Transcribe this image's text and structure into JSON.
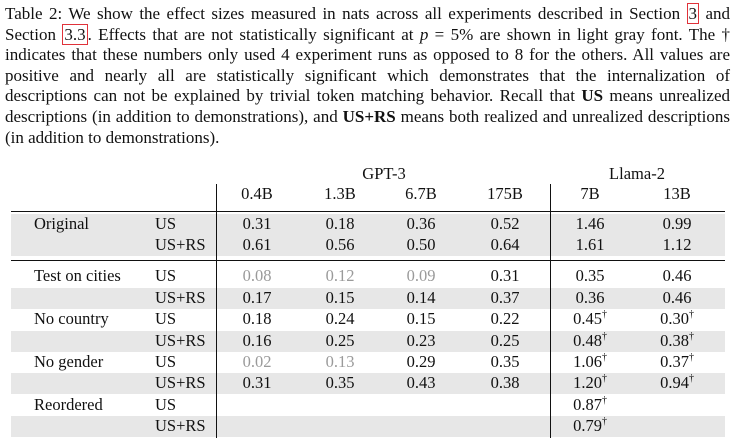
{
  "caption": {
    "label": "Table 2:",
    "text_1": " We show the effect sizes measured in nats across all experiments described in Section ",
    "ref_1": "3",
    "text_2": " and Section ",
    "ref_2": "3.3",
    "text_3": ". Effects that are not statistically significant at ",
    "math_p": "p",
    "math_eq": " = 5%",
    "text_4": " are shown in light gray font. The † indicates that these numbers only used 4 experiment runs as opposed to 8 for the others. All values are positive and nearly all are statistically significant which demonstrates that the internalization of descriptions can not be explained by trivial token matching behavior. Recall that ",
    "bold_us": "US",
    "text_5": " means unrealized descriptions (in addition to demonstrations), and ",
    "bold_usrs": "US+RS",
    "text_6": " means both realized and unrealized descriptions (in addition to demonstrations)."
  },
  "table": {
    "groups": [
      "GPT-3",
      "Llama-2"
    ],
    "columns": [
      "0.4B",
      "1.3B",
      "6.7B",
      "175B",
      "7B",
      "13B"
    ],
    "rows": [
      {
        "exp": "Original",
        "type": "US",
        "shade": true,
        "cells": [
          {
            "v": "0.31"
          },
          {
            "v": "0.18"
          },
          {
            "v": "0.36"
          },
          {
            "v": "0.52"
          },
          {
            "v": "1.46"
          },
          {
            "v": "0.99"
          }
        ]
      },
      {
        "exp": "",
        "type": "US+RS",
        "shade": true,
        "cells": [
          {
            "v": "0.61"
          },
          {
            "v": "0.56"
          },
          {
            "v": "0.50"
          },
          {
            "v": "0.64"
          },
          {
            "v": "1.61"
          },
          {
            "v": "1.12"
          }
        ]
      },
      {
        "exp": "Test on cities",
        "type": "US",
        "shade": false,
        "cells": [
          {
            "v": "0.08",
            "gray": true
          },
          {
            "v": "0.12",
            "gray": true
          },
          {
            "v": "0.09",
            "gray": true
          },
          {
            "v": "0.31"
          },
          {
            "v": "0.35"
          },
          {
            "v": "0.46"
          }
        ]
      },
      {
        "exp": "",
        "type": "US+RS",
        "shade": true,
        "cells": [
          {
            "v": "0.17"
          },
          {
            "v": "0.15"
          },
          {
            "v": "0.14"
          },
          {
            "v": "0.37"
          },
          {
            "v": "0.36"
          },
          {
            "v": "0.46"
          }
        ]
      },
      {
        "exp": "No country",
        "type": "US",
        "shade": false,
        "cells": [
          {
            "v": "0.18"
          },
          {
            "v": "0.24"
          },
          {
            "v": "0.15"
          },
          {
            "v": "0.22"
          },
          {
            "v": "0.45",
            "dag": true
          },
          {
            "v": "0.30",
            "dag": true
          }
        ]
      },
      {
        "exp": "",
        "type": "US+RS",
        "shade": true,
        "cells": [
          {
            "v": "0.16"
          },
          {
            "v": "0.25"
          },
          {
            "v": "0.23"
          },
          {
            "v": "0.25"
          },
          {
            "v": "0.48",
            "dag": true
          },
          {
            "v": "0.38",
            "dag": true
          }
        ]
      },
      {
        "exp": "No gender",
        "type": "US",
        "shade": false,
        "cells": [
          {
            "v": "0.02",
            "gray": true
          },
          {
            "v": "0.13",
            "gray": true
          },
          {
            "v": "0.29"
          },
          {
            "v": "0.35"
          },
          {
            "v": "1.06",
            "dag": true
          },
          {
            "v": "0.37",
            "dag": true
          }
        ]
      },
      {
        "exp": "",
        "type": "US+RS",
        "shade": true,
        "cells": [
          {
            "v": "0.31"
          },
          {
            "v": "0.35"
          },
          {
            "v": "0.43"
          },
          {
            "v": "0.38"
          },
          {
            "v": "1.20",
            "dag": true
          },
          {
            "v": "0.94",
            "dag": true
          }
        ]
      },
      {
        "exp": "Reordered",
        "type": "US",
        "shade": false,
        "cells": [
          {
            "v": ""
          },
          {
            "v": ""
          },
          {
            "v": ""
          },
          {
            "v": ""
          },
          {
            "v": "0.87",
            "dag": true
          },
          {
            "v": ""
          }
        ]
      },
      {
        "exp": "",
        "type": "US+RS",
        "shade": true,
        "cells": [
          {
            "v": ""
          },
          {
            "v": ""
          },
          {
            "v": ""
          },
          {
            "v": ""
          },
          {
            "v": "0.79",
            "dag": true
          },
          {
            "v": ""
          }
        ]
      }
    ],
    "dagger": "†"
  }
}
